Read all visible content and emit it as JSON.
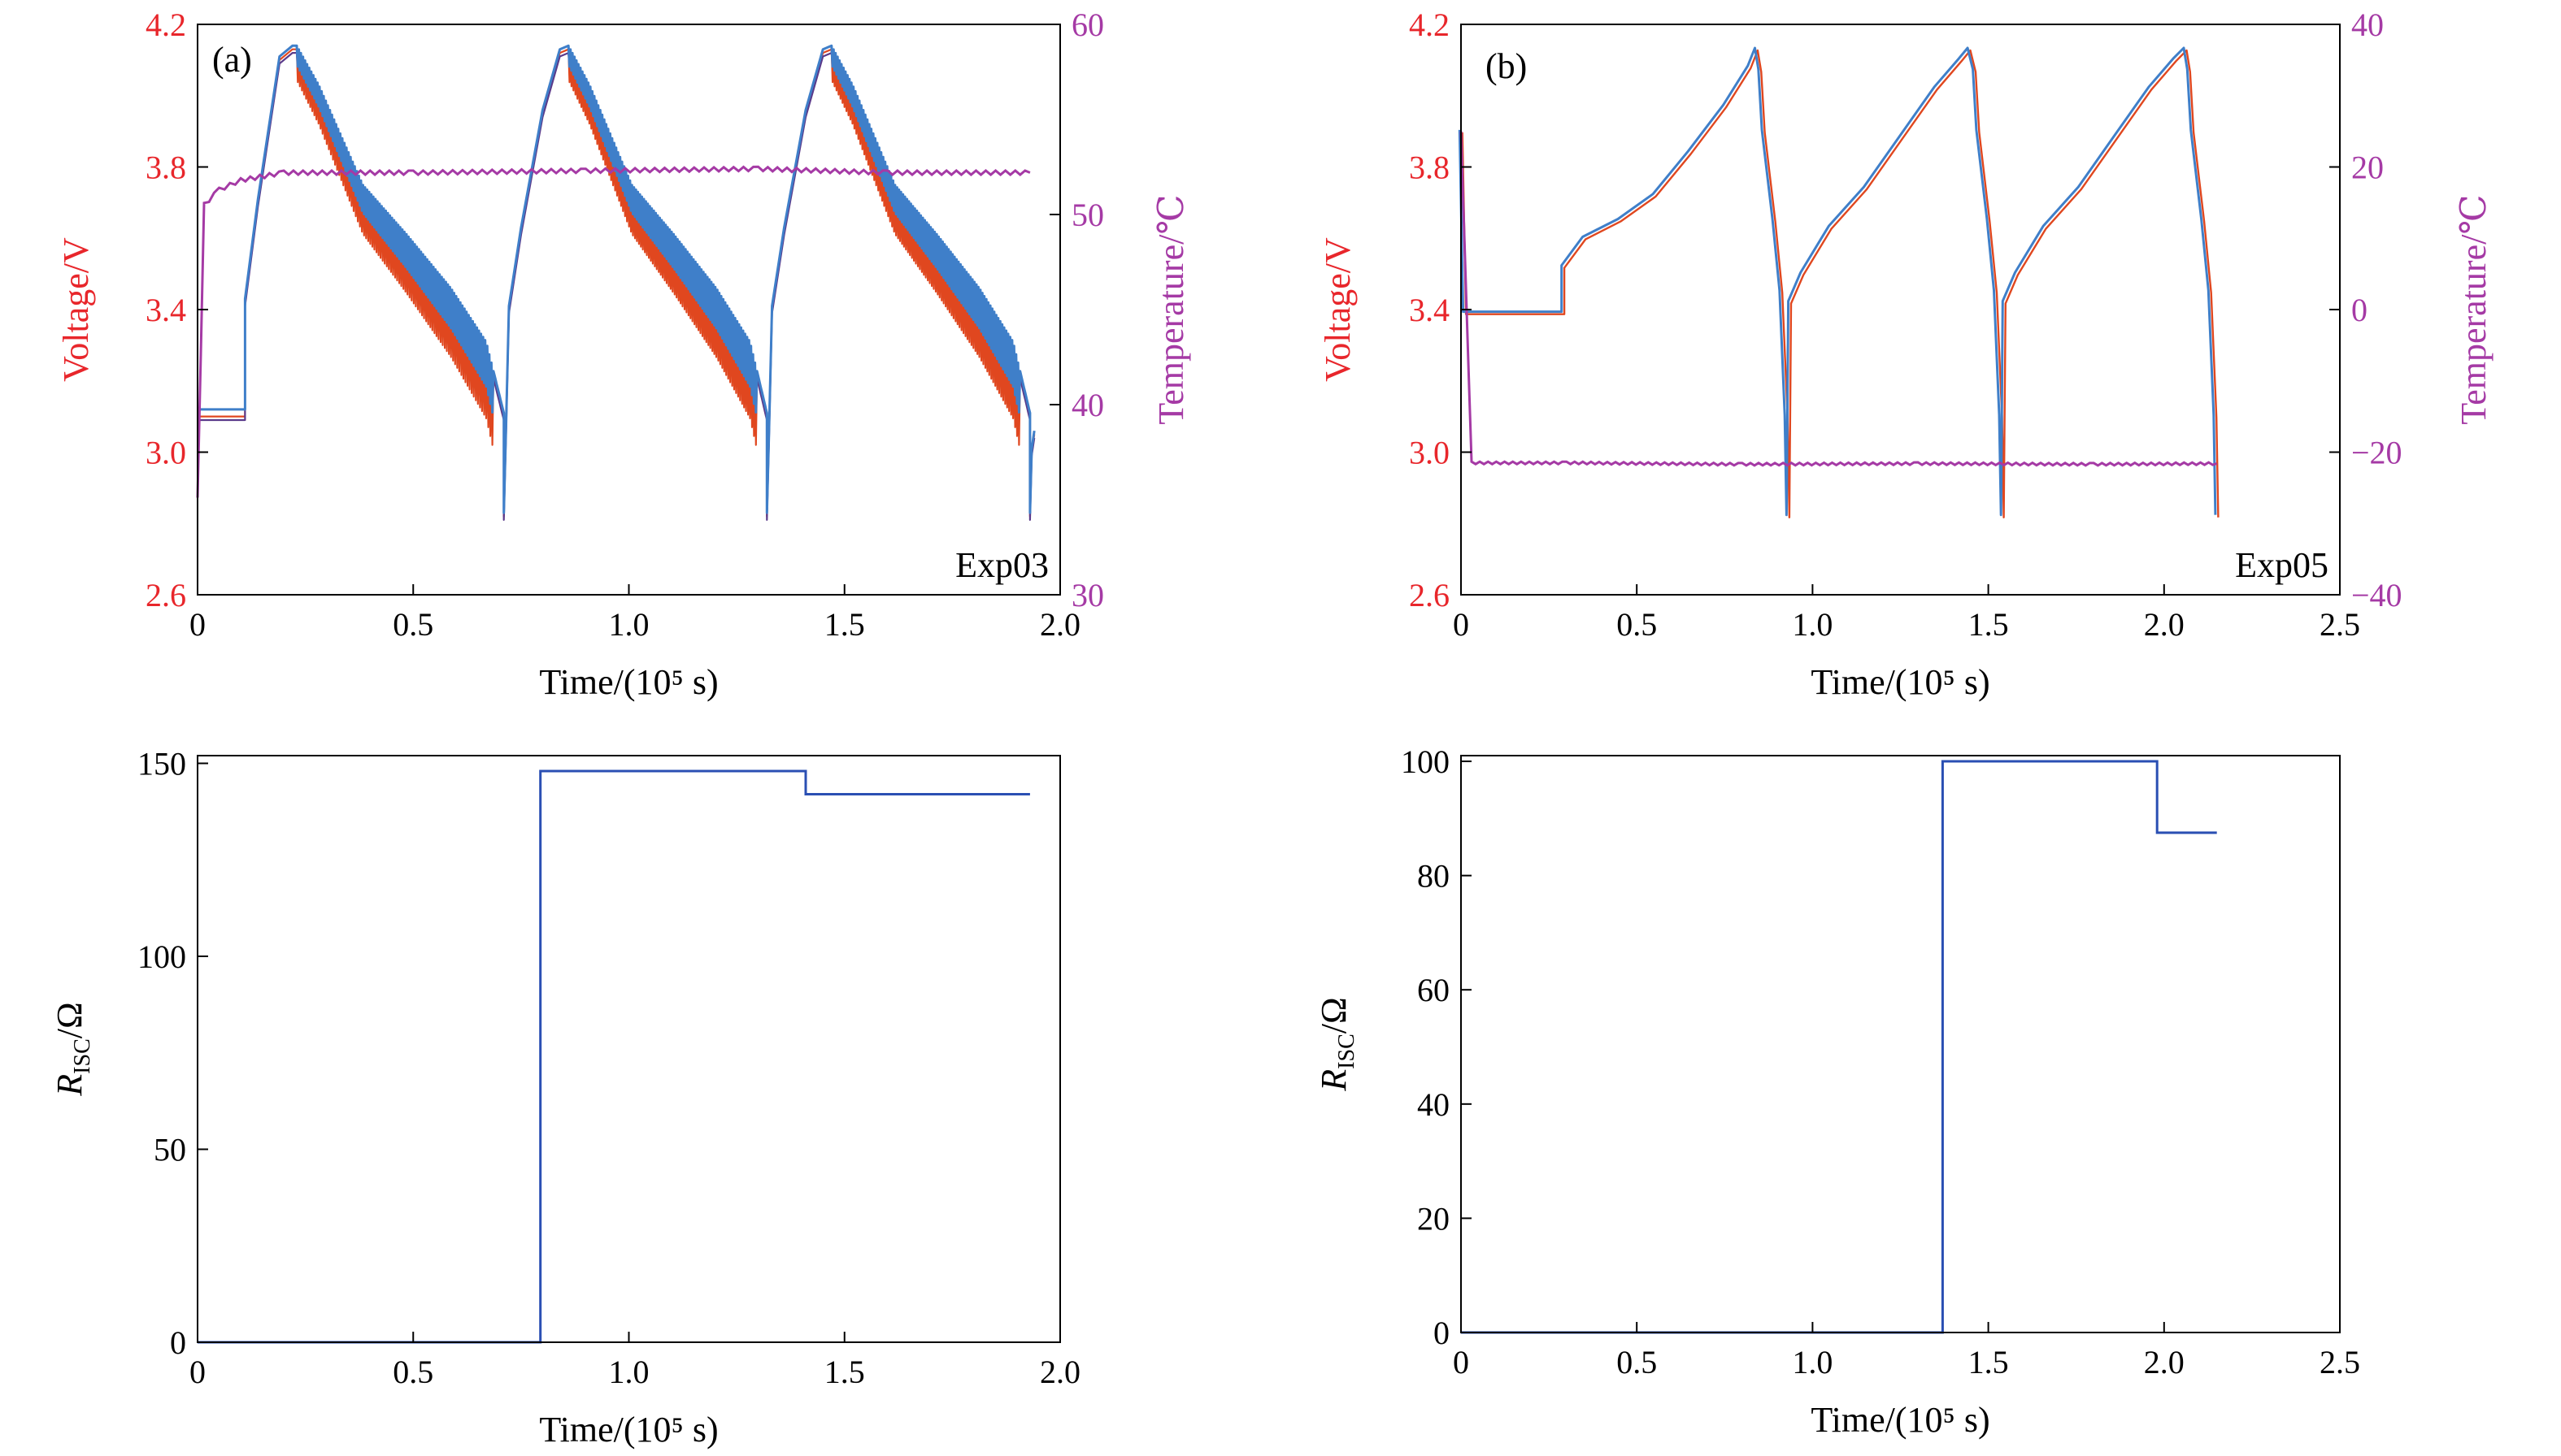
{
  "colors": {
    "voltage_axis": "#e8262b",
    "temperature_axis": "#a53aa5",
    "resistance_line": "#2a4fb3",
    "voltage_series": [
      "#e0471f",
      "#5a3a8a",
      "#3f7fc9"
    ]
  },
  "chart_data": [
    {
      "panel": "a",
      "type": "line",
      "label": "(a)",
      "annotation": "Exp03",
      "xlabel": "Time/(10⁵ s)",
      "ylabel_left": "Voltage/V",
      "ylabel_right": "Temperature/℃",
      "xlim": [
        0,
        2.0
      ],
      "xticks": [
        0,
        0.5,
        1.0,
        1.5,
        2.0
      ],
      "xtick_labels": [
        "0",
        "0.5",
        "1.0",
        "1.5",
        "2.0"
      ],
      "ylim_left": [
        2.6,
        4.2
      ],
      "yticks_left": [
        2.6,
        3.0,
        3.4,
        3.8,
        4.2
      ],
      "ytick_labels_left": [
        "2.6",
        "3.0",
        "3.4",
        "3.8",
        "4.2"
      ],
      "ylim_right": [
        30,
        60
      ],
      "yticks_right": [
        30,
        40,
        50,
        60
      ],
      "ytick_labels_right": [
        "30",
        "40",
        "50",
        "60"
      ],
      "voltage_cycles": {
        "rest_end": 0.11,
        "rest_voltage": [
          3.1,
          3.09,
          3.12
        ],
        "charge": [
          [
            0.11,
            3.42
          ],
          [
            0.14,
            3.7
          ],
          [
            0.19,
            4.1
          ],
          [
            0.22,
            4.13
          ]
        ],
        "peaks": [
          0.23,
          0.86,
          1.47
        ],
        "minima": [
          0.71,
          1.32,
          1.93
        ],
        "discharge_profile": [
          [
            0,
            4.13
          ],
          [
            0.05,
            4.02
          ],
          [
            0.15,
            3.74
          ],
          [
            0.25,
            3.6
          ],
          [
            0.35,
            3.45
          ],
          [
            0.43,
            3.3
          ],
          [
            0.47,
            3.1
          ],
          [
            0.48,
            2.85
          ]
        ],
        "pulse_amplitude": 0.12
      },
      "temperature": [
        [
          0,
          35
        ],
        [
          0.015,
          50.5
        ],
        [
          0.05,
          51.3
        ],
        [
          0.1,
          51.8
        ],
        [
          0.2,
          52.2
        ],
        [
          0.5,
          52.2
        ],
        [
          0.9,
          52.3
        ],
        [
          1.3,
          52.4
        ],
        [
          1.6,
          52.2
        ],
        [
          1.93,
          52.2
        ]
      ]
    },
    {
      "panel": "b",
      "type": "line",
      "label": "(b)",
      "annotation": "Exp05",
      "xlabel": "Time/(10⁵ s)",
      "ylabel_left": "Voltage/V",
      "ylabel_right": "Temperature/℃",
      "xlim": [
        0,
        2.5
      ],
      "xticks": [
        0,
        0.5,
        1.0,
        1.5,
        2.0,
        2.5
      ],
      "xtick_labels": [
        "0",
        "0.5",
        "1.0",
        "1.5",
        "2.0",
        "2.5"
      ],
      "ylim_left": [
        2.6,
        4.2
      ],
      "yticks_left": [
        2.6,
        3.0,
        3.4,
        3.8,
        4.2
      ],
      "ytick_labels_left": [
        "2.6",
        "3.0",
        "3.4",
        "3.8",
        "4.2"
      ],
      "ylim_right": [
        -40,
        40
      ],
      "yticks_right": [
        -40,
        -20,
        0,
        20,
        40
      ],
      "ytick_labels_right": [
        "−40",
        "−20",
        "0",
        "20",
        "40"
      ],
      "voltage": [
        [
          0,
          3.9
        ],
        [
          0.01,
          3.39
        ],
        [
          0.29,
          3.39
        ],
        [
          0.29,
          3.52
        ],
        [
          0.35,
          3.6
        ],
        [
          0.45,
          3.65
        ],
        [
          0.55,
          3.72
        ],
        [
          0.65,
          3.84
        ],
        [
          0.75,
          3.97
        ],
        [
          0.82,
          4.08
        ],
        [
          0.84,
          4.13
        ],
        [
          0.85,
          4.07
        ],
        [
          0.86,
          3.9
        ],
        [
          0.89,
          3.65
        ],
        [
          0.91,
          3.45
        ],
        [
          0.925,
          3.1
        ],
        [
          0.93,
          2.82
        ],
        [
          0.935,
          3.42
        ],
        [
          0.97,
          3.5
        ],
        [
          1.05,
          3.63
        ],
        [
          1.15,
          3.74
        ],
        [
          1.25,
          3.88
        ],
        [
          1.35,
          4.02
        ],
        [
          1.42,
          4.1
        ],
        [
          1.445,
          4.13
        ],
        [
          1.46,
          4.07
        ],
        [
          1.47,
          3.9
        ],
        [
          1.5,
          3.65
        ],
        [
          1.52,
          3.45
        ],
        [
          1.535,
          3.1
        ],
        [
          1.54,
          2.82
        ],
        [
          1.545,
          3.42
        ],
        [
          1.58,
          3.5
        ],
        [
          1.66,
          3.63
        ],
        [
          1.76,
          3.74
        ],
        [
          1.86,
          3.88
        ],
        [
          1.96,
          4.02
        ],
        [
          2.03,
          4.1
        ],
        [
          2.06,
          4.13
        ],
        [
          2.07,
          4.07
        ],
        [
          2.08,
          3.9
        ],
        [
          2.11,
          3.65
        ],
        [
          2.13,
          3.45
        ],
        [
          2.145,
          3.1
        ],
        [
          2.15,
          2.82
        ]
      ],
      "temperature": [
        [
          0,
          25
        ],
        [
          0.03,
          -21.5
        ],
        [
          0.3,
          -21.5
        ],
        [
          0.8,
          -21.7
        ],
        [
          1.3,
          -21.6
        ],
        [
          1.8,
          -21.7
        ],
        [
          2.15,
          -21.6
        ]
      ]
    },
    {
      "panel": "c",
      "type": "line",
      "xlabel": "Time/(10⁵ s)",
      "ylabel_main": "R",
      "ylabel_sub": "ISC",
      "ylabel_unit": "/Ω",
      "xlim": [
        0,
        2.0
      ],
      "xticks": [
        0,
        0.5,
        1.0,
        1.5,
        2.0
      ],
      "xtick_labels": [
        "0",
        "0.5",
        "1.0",
        "1.5",
        "2.0"
      ],
      "ylim": [
        0,
        152
      ],
      "yticks": [
        0,
        50,
        100,
        150
      ],
      "ytick_labels": [
        "0",
        "50",
        "100",
        "150"
      ],
      "x": [
        0,
        0.795,
        0.795,
        1.41,
        1.41,
        1.93
      ],
      "y": [
        0,
        0,
        148,
        148,
        142,
        142
      ]
    },
    {
      "panel": "d",
      "type": "line",
      "xlabel": "Time/(10⁵ s)",
      "ylabel_main": "R",
      "ylabel_sub": "ISC",
      "ylabel_unit": "/Ω",
      "xlim": [
        0,
        2.5
      ],
      "xticks": [
        0,
        0.5,
        1.0,
        1.5,
        2.0,
        2.5
      ],
      "xtick_labels": [
        "0",
        "0.5",
        "1.0",
        "1.5",
        "2.0",
        "2.5"
      ],
      "ylim": [
        0,
        101
      ],
      "yticks": [
        0,
        20,
        40,
        60,
        80,
        100
      ],
      "ytick_labels": [
        "0",
        "20",
        "40",
        "60",
        "80",
        "100"
      ],
      "x": [
        0,
        1.37,
        1.37,
        1.98,
        1.98,
        2.15
      ],
      "y": [
        0,
        0,
        100,
        100,
        87.5,
        87.5
      ]
    }
  ]
}
